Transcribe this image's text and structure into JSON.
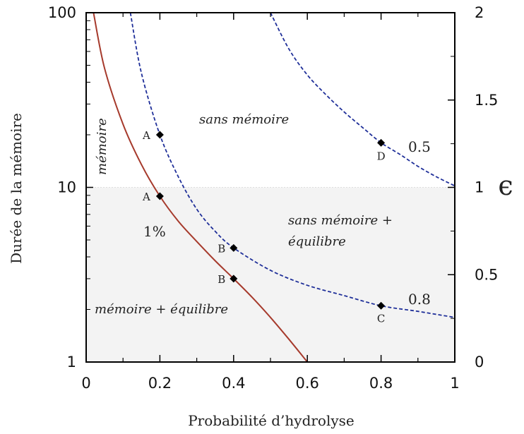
{
  "chart_data": {
    "type": "line",
    "title": "",
    "xlabel": "Probabilité d’hydrolyse",
    "ylabel": "Durée de la mémoire",
    "y2label": "ϵ",
    "xlim": [
      0,
      1
    ],
    "ylim": [
      1,
      100
    ],
    "yscale": "log",
    "y2lim": [
      0,
      2
    ],
    "x_ticks": [
      "0",
      "0.2",
      "0.4",
      "0.6",
      "0.8",
      "1"
    ],
    "y_ticks": [
      "1",
      "10",
      "100"
    ],
    "y2_ticks": [
      "0",
      "0.5",
      "1",
      "1.5",
      "2"
    ],
    "shaded_region": {
      "y_from": 1,
      "y_to": 10,
      "color": "#f3f3f3"
    },
    "series": [
      {
        "label": "1%",
        "style": "solid",
        "color": "#a63a2c",
        "x": [
          0.02,
          0.05,
          0.1,
          0.15,
          0.2,
          0.25,
          0.3,
          0.35,
          0.4,
          0.45,
          0.5,
          0.55,
          0.6
        ],
        "y": [
          100,
          48,
          23,
          13.5,
          8.9,
          6.4,
          4.9,
          3.8,
          3.0,
          2.35,
          1.8,
          1.35,
          1.0
        ]
      },
      {
        "label": "0.8",
        "style": "dashed",
        "color": "#1f2f99",
        "x": [
          0.12,
          0.15,
          0.2,
          0.25,
          0.3,
          0.35,
          0.4,
          0.5,
          0.6,
          0.7,
          0.8,
          0.9,
          1.0
        ],
        "y": [
          100,
          45,
          20,
          11.5,
          7.5,
          5.6,
          4.5,
          3.35,
          2.75,
          2.4,
          2.1,
          1.95,
          1.8
        ]
      },
      {
        "label": "0.5",
        "style": "dashed",
        "color": "#1f2f99",
        "x": [
          0.5,
          0.55,
          0.6,
          0.65,
          0.7,
          0.75,
          0.8,
          0.85,
          0.9,
          0.95,
          1.0
        ],
        "y": [
          100,
          62,
          44,
          34,
          27,
          22,
          18,
          15.5,
          13.2,
          11.5,
          10.2
        ]
      }
    ],
    "points": [
      {
        "label": "A",
        "x": 0.2,
        "y": 20
      },
      {
        "label": "A",
        "x": 0.2,
        "y": 8.9
      },
      {
        "label": "B",
        "x": 0.4,
        "y": 4.5
      },
      {
        "label": "B",
        "x": 0.4,
        "y": 3.0
      },
      {
        "label": "C",
        "x": 0.8,
        "y": 2.1
      },
      {
        "label": "D",
        "x": 0.8,
        "y": 18
      }
    ],
    "annotations": {
      "region_sans_memoire": "sans mémoire",
      "region_memoire": "mémoire",
      "region_sans_memoire_equilibre_1": "sans mémoire +",
      "region_sans_memoire_equilibre_2": "équilibre",
      "region_memoire_equilibre": "mémoire + équilibre",
      "curve_label_1pct": "1%",
      "curve_label_05": "0.5",
      "curve_label_08": "0.8"
    }
  }
}
